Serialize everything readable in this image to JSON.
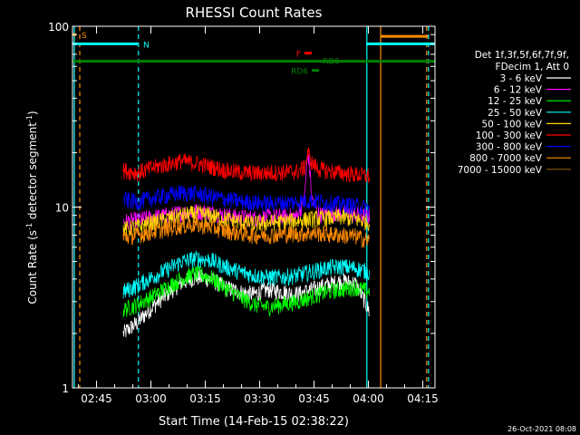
{
  "chart_data": {
    "type": "line",
    "title": "RHESSI Count Rates",
    "xlabel": "Start Time (14-Feb-15 02:38:22)",
    "ylabel_main": "Count Rate (s",
    "ylabel_sup1": "-1",
    "ylabel_mid": " detector segment",
    "ylabel_sup2": "-1",
    "ylabel_end": ")",
    "x_unit": "minutes after 02:38:22",
    "xlim": [
      0,
      100
    ],
    "ylim": [
      1,
      100
    ],
    "yscale": "log",
    "x_ticks": [
      {
        "t": 6.63,
        "label": "02:45"
      },
      {
        "t": 21.63,
        "label": "03:00"
      },
      {
        "t": 36.63,
        "label": "03:15"
      },
      {
        "t": 51.63,
        "label": "03:30"
      },
      {
        "t": 66.63,
        "label": "03:45"
      },
      {
        "t": 81.63,
        "label": "04:00"
      },
      {
        "t": 96.63,
        "label": "04:15"
      }
    ],
    "y_ticks": [
      {
        "v": 1,
        "label": "1"
      },
      {
        "v": 10,
        "label": "10"
      },
      {
        "v": 100,
        "label": "100"
      }
    ],
    "legend_header": [
      "Det 1f,3f,5f,6f,7f,9f,",
      "FDecim 1, Att 0"
    ],
    "series": [
      {
        "name": "3 - 6 keV",
        "color": "#ffffff",
        "points": [
          [
            14,
            2.0
          ],
          [
            18,
            2.3
          ],
          [
            22,
            2.8
          ],
          [
            26,
            3.3
          ],
          [
            30,
            3.8
          ],
          [
            34,
            4.1
          ],
          [
            38,
            4.0
          ],
          [
            42,
            3.6
          ],
          [
            46,
            3.4
          ],
          [
            50,
            3.3
          ],
          [
            54,
            3.5
          ],
          [
            58,
            3.4
          ],
          [
            62,
            3.3
          ],
          [
            66,
            3.5
          ],
          [
            70,
            3.7
          ],
          [
            74,
            3.9
          ],
          [
            78,
            3.8
          ],
          [
            80,
            3.2
          ],
          [
            82,
            2.6
          ]
        ]
      },
      {
        "name": "6 - 12 keV",
        "color": "#ff00ff",
        "points": [
          [
            14,
            8.3
          ],
          [
            18,
            8.5
          ],
          [
            22,
            8.8
          ],
          [
            26,
            9.0
          ],
          [
            30,
            9.3
          ],
          [
            34,
            9.5
          ],
          [
            38,
            9.4
          ],
          [
            42,
            9.0
          ],
          [
            46,
            8.8
          ],
          [
            50,
            8.7
          ],
          [
            54,
            8.8
          ],
          [
            58,
            8.9
          ],
          [
            62,
            8.9
          ],
          [
            64,
            11.0
          ],
          [
            65,
            20.0
          ],
          [
            66,
            11.0
          ],
          [
            68,
            9.1
          ],
          [
            72,
            9.2
          ],
          [
            76,
            9.3
          ],
          [
            80,
            9.0
          ],
          [
            82,
            8.8
          ]
        ]
      },
      {
        "name": "12 - 25 keV",
        "color": "#00ff00",
        "points": [
          [
            14,
            2.7
          ],
          [
            18,
            2.9
          ],
          [
            22,
            3.2
          ],
          [
            26,
            3.6
          ],
          [
            30,
            4.0
          ],
          [
            34,
            4.3
          ],
          [
            38,
            4.1
          ],
          [
            42,
            3.6
          ],
          [
            46,
            3.2
          ],
          [
            50,
            2.9
          ],
          [
            54,
            2.8
          ],
          [
            58,
            2.9
          ],
          [
            62,
            3.0
          ],
          [
            66,
            3.2
          ],
          [
            70,
            3.4
          ],
          [
            74,
            3.5
          ],
          [
            78,
            3.6
          ],
          [
            80,
            3.5
          ],
          [
            82,
            3.4
          ]
        ]
      },
      {
        "name": "25 - 50 keV",
        "color": "#00ffff",
        "points": [
          [
            14,
            3.4
          ],
          [
            18,
            3.7
          ],
          [
            22,
            4.1
          ],
          [
            26,
            4.5
          ],
          [
            30,
            5.0
          ],
          [
            34,
            5.2
          ],
          [
            38,
            5.1
          ],
          [
            42,
            4.7
          ],
          [
            46,
            4.4
          ],
          [
            50,
            4.2
          ],
          [
            54,
            4.1
          ],
          [
            58,
            4.1
          ],
          [
            62,
            4.2
          ],
          [
            66,
            4.4
          ],
          [
            70,
            4.6
          ],
          [
            74,
            4.7
          ],
          [
            78,
            4.6
          ],
          [
            80,
            4.5
          ],
          [
            82,
            4.3
          ]
        ]
      },
      {
        "name": "50 - 100 keV",
        "color": "#ffd700",
        "points": [
          [
            14,
            7.5
          ],
          [
            18,
            7.8
          ],
          [
            22,
            8.2
          ],
          [
            26,
            8.6
          ],
          [
            30,
            9.0
          ],
          [
            34,
            9.2
          ],
          [
            38,
            9.0
          ],
          [
            42,
            8.6
          ],
          [
            46,
            8.3
          ],
          [
            50,
            8.1
          ],
          [
            54,
            8.2
          ],
          [
            58,
            8.3
          ],
          [
            62,
            8.4
          ],
          [
            66,
            8.6
          ],
          [
            70,
            8.7
          ],
          [
            74,
            8.8
          ],
          [
            78,
            8.6
          ],
          [
            80,
            8.4
          ],
          [
            82,
            8.2
          ]
        ]
      },
      {
        "name": "100 - 300 keV",
        "color": "#ff0000",
        "points": [
          [
            14,
            16.0
          ],
          [
            18,
            15.5
          ],
          [
            22,
            16.5
          ],
          [
            26,
            17.2
          ],
          [
            30,
            18.0
          ],
          [
            34,
            17.5
          ],
          [
            38,
            16.8
          ],
          [
            42,
            16.0
          ],
          [
            46,
            15.6
          ],
          [
            50,
            15.4
          ],
          [
            54,
            15.5
          ],
          [
            58,
            15.6
          ],
          [
            62,
            15.8
          ],
          [
            64,
            16.5
          ],
          [
            65,
            20.0
          ],
          [
            66,
            17.5
          ],
          [
            68,
            16.2
          ],
          [
            72,
            15.7
          ],
          [
            76,
            15.3
          ],
          [
            80,
            15.0
          ],
          [
            82,
            14.8
          ]
        ]
      },
      {
        "name": "300 - 800 keV",
        "color": "#0000ff",
        "points": [
          [
            14,
            11.0
          ],
          [
            18,
            10.7
          ],
          [
            22,
            11.2
          ],
          [
            26,
            11.6
          ],
          [
            30,
            12.0
          ],
          [
            34,
            11.9
          ],
          [
            38,
            11.5
          ],
          [
            42,
            11.1
          ],
          [
            46,
            10.8
          ],
          [
            50,
            10.6
          ],
          [
            54,
            10.5
          ],
          [
            58,
            10.6
          ],
          [
            62,
            10.7
          ],
          [
            66,
            10.9
          ],
          [
            70,
            10.6
          ],
          [
            74,
            10.4
          ],
          [
            78,
            10.2
          ],
          [
            80,
            10.0
          ],
          [
            82,
            9.8
          ]
        ]
      },
      {
        "name": "800 - 7000 keV",
        "color": "#ff8c00",
        "points": [
          [
            14,
            6.8
          ],
          [
            18,
            7.0
          ],
          [
            22,
            7.3
          ],
          [
            26,
            7.6
          ],
          [
            30,
            7.9
          ],
          [
            34,
            8.0
          ],
          [
            38,
            7.8
          ],
          [
            42,
            7.4
          ],
          [
            46,
            7.2
          ],
          [
            50,
            7.0
          ],
          [
            54,
            7.0
          ],
          [
            58,
            7.1
          ],
          [
            62,
            7.1
          ],
          [
            66,
            7.2
          ],
          [
            70,
            7.1
          ],
          [
            74,
            7.0
          ],
          [
            78,
            6.9
          ],
          [
            80,
            6.7
          ],
          [
            82,
            6.5
          ]
        ]
      },
      {
        "name": "7000 - 15000 keV",
        "color": "#8b5a00",
        "points": []
      }
    ],
    "flags": [
      {
        "label": "S",
        "color": "#ff8c00",
        "t_start": 0,
        "t_end": 1,
        "level": 90
      },
      {
        "label": "N",
        "color": "#00ffff",
        "t_start": 0,
        "t_end": 18,
        "level": 80
      },
      {
        "label": "",
        "color": "#00ffff",
        "t_start": 81,
        "t_end": 100,
        "level": 80
      },
      {
        "label": "",
        "color": "#ff8c00",
        "t_start": 85,
        "t_end": 98,
        "level": 88
      },
      {
        "label": "RD0",
        "color": "#008000",
        "t_start": 0,
        "t_end": 100,
        "level": 64
      },
      {
        "label": "F",
        "color": "#ff0000",
        "t_start": 64,
        "t_end": 66,
        "level": 71
      },
      {
        "label": "RD6",
        "color": "#008000",
        "t_start": 66,
        "t_end": 68,
        "level": 57
      }
    ],
    "vlines": [
      {
        "t": 0.5,
        "color": "#00ffff",
        "style": "solid"
      },
      {
        "t": 2.0,
        "color": "#ff8c00",
        "style": "dashed"
      },
      {
        "t": 18.2,
        "color": "#00ffff",
        "style": "dashed"
      },
      {
        "t": 81.2,
        "color": "#00ffff",
        "style": "solid"
      },
      {
        "t": 85.0,
        "color": "#ff8c00",
        "style": "solid"
      },
      {
        "t": 97.7,
        "color": "#ff8c00",
        "style": "dashed"
      },
      {
        "t": 98.2,
        "color": "#00ffff",
        "style": "dashed"
      }
    ],
    "footer_date": "26-Oct-2021 08:08"
  }
}
